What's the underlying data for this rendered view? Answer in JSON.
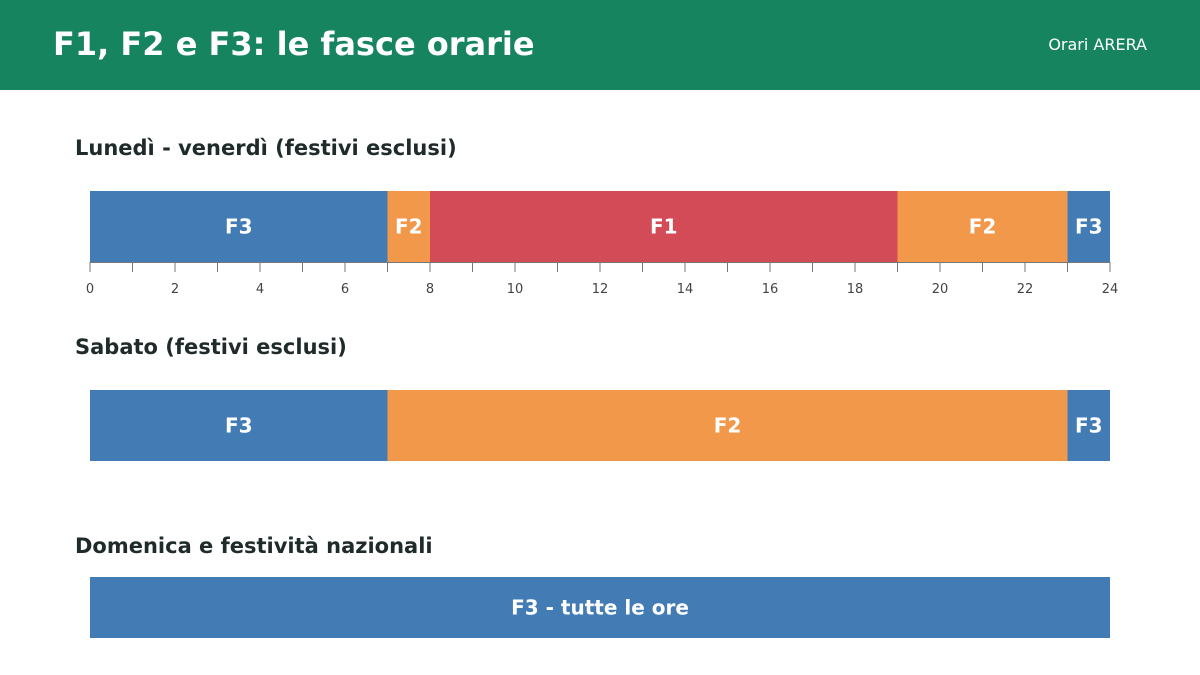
{
  "header": {
    "title": "F1, F2 e F3: le fasce orarie",
    "source": "Orari ARERA"
  },
  "colors": {
    "header_bg": "#16845f",
    "F1": "#d24b57",
    "F2": "#f1984a",
    "F3": "#437cb5"
  },
  "chart_data": {
    "type": "bar",
    "x_unit": "hours",
    "xlim": [
      0,
      24
    ],
    "x_ticks": [
      0,
      2,
      4,
      6,
      8,
      10,
      12,
      14,
      16,
      18,
      20,
      22,
      24
    ],
    "minor_tick_step": 1,
    "rows": [
      {
        "title": "Lunedì - venerdì (festivi esclusi)",
        "show_axis": true,
        "segments": [
          {
            "band": "F3",
            "label": "F3",
            "start": 0,
            "end": 7
          },
          {
            "band": "F2",
            "label": "F2",
            "start": 7,
            "end": 8
          },
          {
            "band": "F1",
            "label": "F1",
            "start": 8,
            "end": 19
          },
          {
            "band": "F2",
            "label": "F2",
            "start": 19,
            "end": 23
          },
          {
            "band": "F3",
            "label": "F3",
            "start": 23,
            "end": 24
          }
        ]
      },
      {
        "title": "Sabato (festivi esclusi)",
        "show_axis": false,
        "segments": [
          {
            "band": "F3",
            "label": "F3",
            "start": 0,
            "end": 7
          },
          {
            "band": "F2",
            "label": "F2",
            "start": 7,
            "end": 23
          },
          {
            "band": "F3",
            "label": "F3",
            "start": 23,
            "end": 24
          }
        ]
      },
      {
        "title": "Domenica e festività nazionali",
        "show_axis": false,
        "segments": [
          {
            "band": "F3",
            "label": "F3 - tutte le ore",
            "start": 0,
            "end": 24
          }
        ]
      }
    ]
  }
}
